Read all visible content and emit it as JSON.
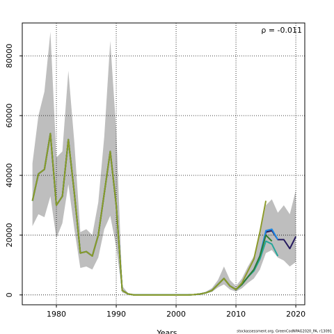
{
  "chart_data": {
    "type": "line",
    "xlabel": "Years",
    "annotation": "ρ = -0.011",
    "footer": "stockassessment.org, GreenCodNPAG2020_PA, r13091",
    "x": [
      1976,
      1977,
      1978,
      1979,
      1980,
      1981,
      1982,
      1983,
      1984,
      1985,
      1986,
      1987,
      1988,
      1989,
      1990,
      1991,
      1992,
      1993,
      1994,
      1995,
      1996,
      1997,
      1998,
      1999,
      2000,
      2001,
      2002,
      2003,
      2004,
      2005,
      2006,
      2007,
      2008,
      2009,
      2010,
      2011,
      2012,
      2013,
      2014,
      2015,
      2016,
      2017,
      2018,
      2019,
      2020
    ],
    "band_color": "#bebebe",
    "band_lower": [
      23000,
      27000,
      26000,
      33000,
      19000,
      24000,
      37000,
      22000,
      9000,
      9500,
      8500,
      12500,
      22000,
      26500,
      16000,
      800,
      100,
      0,
      0,
      0,
      0,
      0,
      0,
      0,
      0,
      0,
      0,
      50,
      200,
      500,
      1000,
      2500,
      3500,
      1800,
      1100,
      2200,
      4000,
      5500,
      8500,
      14000,
      15000,
      12500,
      11500,
      9500,
      11000
    ],
    "band_upper": [
      44000,
      60000,
      68000,
      88000,
      46000,
      48000,
      75000,
      51000,
      21000,
      22000,
      20000,
      31000,
      53000,
      85000,
      55000,
      3000,
      500,
      100,
      0,
      0,
      0,
      0,
      0,
      0,
      0,
      0,
      0,
      200,
      500,
      1100,
      2300,
      5000,
      9500,
      5000,
      3000,
      5500,
      9500,
      13000,
      20000,
      30000,
      32000,
      27500,
      30000,
      27000,
      35000
    ],
    "series": [
      {
        "color": "#24195e",
        "values": [
          31500,
          40500,
          42000,
          54000,
          30000,
          33000,
          52000,
          34000,
          14000,
          14500,
          13000,
          20000,
          34000,
          48000,
          30000,
          1500,
          300,
          0,
          0,
          0,
          0,
          0,
          0,
          0,
          0,
          0,
          0,
          100,
          300,
          700,
          1500,
          3500,
          5500,
          3000,
          1800,
          3500,
          6000,
          8500,
          13000,
          21000,
          21500,
          18500,
          18500,
          15500,
          19500
        ]
      },
      {
        "color": "#1e88e5",
        "values": [
          31500,
          40500,
          42000,
          54000,
          30000,
          33000,
          52000,
          34000,
          14000,
          14500,
          13000,
          20000,
          34000,
          48000,
          30000,
          1500,
          300,
          0,
          0,
          0,
          0,
          0,
          0,
          0,
          0,
          0,
          0,
          100,
          300,
          700,
          1500,
          3500,
          5500,
          3000,
          1800,
          3500,
          6000,
          8500,
          13000,
          21500,
          22000,
          18500,
          null,
          null,
          null
        ]
      },
      {
        "color": "#26a69a",
        "values": [
          31500,
          40500,
          42000,
          54000,
          30000,
          33000,
          52000,
          34000,
          14000,
          14500,
          13000,
          20000,
          34000,
          48000,
          30000,
          1500,
          300,
          0,
          0,
          0,
          0,
          0,
          0,
          0,
          0,
          0,
          0,
          100,
          300,
          700,
          1500,
          3500,
          5500,
          3000,
          1800,
          3500,
          6000,
          8000,
          12000,
          18000,
          17000,
          13000,
          null,
          null,
          null
        ]
      },
      {
        "color": "#2e7d32",
        "values": [
          31500,
          40500,
          42000,
          54000,
          30000,
          33000,
          52000,
          34000,
          14000,
          14500,
          13000,
          20000,
          34000,
          48000,
          30000,
          1500,
          300,
          0,
          0,
          0,
          0,
          0,
          0,
          0,
          0,
          0,
          0,
          100,
          300,
          700,
          1500,
          3500,
          5500,
          3000,
          1800,
          3500,
          6000,
          8500,
          13000,
          20000,
          18000,
          null,
          null,
          null,
          null
        ]
      },
      {
        "color": "#8c9a2a",
        "values": [
          31500,
          40500,
          42000,
          54000,
          30000,
          33000,
          52000,
          34000,
          14000,
          14500,
          13000,
          20000,
          34000,
          48000,
          30000,
          1500,
          300,
          0,
          0,
          0,
          0,
          0,
          0,
          0,
          0,
          0,
          0,
          100,
          300,
          700,
          1500,
          3500,
          5500,
          3000,
          1800,
          4000,
          8000,
          12000,
          21000,
          31500,
          null,
          null,
          null,
          null,
          null
        ]
      }
    ],
    "xlim": [
      1974.3,
      2021.5
    ],
    "xticks": [
      1980,
      1990,
      2000,
      2010,
      2020
    ],
    "ylim": [
      -3300,
      91000
    ],
    "yticks": [
      0,
      20000,
      40000,
      60000,
      80000
    ],
    "grid": true
  }
}
